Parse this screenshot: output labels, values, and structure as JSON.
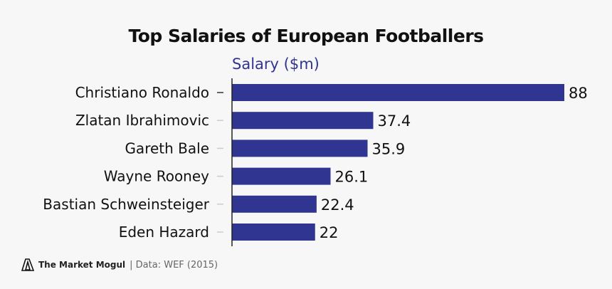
{
  "chart_data": {
    "type": "bar",
    "orientation": "horizontal",
    "title": "Top Salaries of European Footballers",
    "xlabel": "Salary ($m)",
    "categories": [
      "Christiano Ronaldo",
      "Zlatan Ibrahimovic",
      "Gareth Bale",
      "Wayne Rooney",
      "Bastian Schweinsteiger",
      "Eden Hazard"
    ],
    "values": [
      88,
      37.4,
      35.9,
      26.1,
      22.4,
      22
    ],
    "value_labels": [
      "88",
      "37.4",
      "35.9",
      "26.1",
      "22.4",
      "22"
    ],
    "xlim": [
      0,
      88
    ],
    "grid": false,
    "bar_color": "#303591"
  },
  "footer": {
    "brand": "The Market Mogul",
    "source": "| Data: WEF (2015)"
  }
}
